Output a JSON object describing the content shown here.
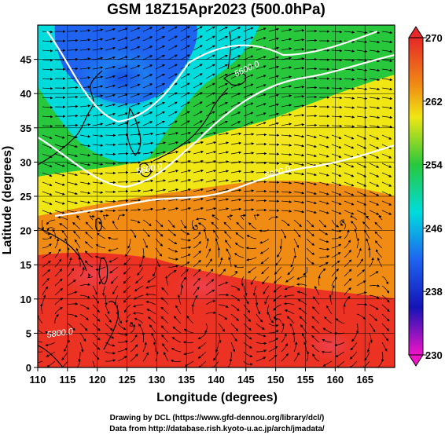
{
  "map": {
    "title": "GSM 18Z15Apr2023 (500.0hPa)",
    "type": "filled-contour-map-with-streamlines",
    "region": "East Asia and Western North Pacific",
    "x_axis": {
      "label": "Longitude (degrees)",
      "range": [
        110,
        170
      ],
      "ticks": [
        "110",
        "115",
        "120",
        "125",
        "130",
        "135",
        "140",
        "145",
        "150",
        "155",
        "160",
        "165"
      ],
      "tick_values": [
        110,
        115,
        120,
        125,
        130,
        135,
        140,
        145,
        150,
        155,
        160,
        165
      ]
    },
    "y_axis": {
      "label": "Latitude (degrees)",
      "range": [
        0,
        50
      ],
      "ticks": [
        "0",
        "5",
        "10",
        "15",
        "20",
        "25",
        "30",
        "35",
        "40",
        "45"
      ],
      "tick_values": [
        0,
        5,
        10,
        15,
        20,
        25,
        30,
        35,
        40,
        45
      ]
    },
    "grid": true,
    "colorbar": {
      "range": [
        230,
        270
      ],
      "labels": [
        "270",
        "262",
        "254",
        "246",
        "238",
        "230"
      ],
      "label_values": [
        270,
        262,
        254,
        246,
        238,
        230
      ],
      "position": "right"
    },
    "contour_labels": [
      "5600.0",
      "5800.0",
      "5600.0",
      "5800.0"
    ],
    "colors": {
      "cold": "#1e64f0",
      "cyan": "#00dcdc",
      "green": "#28c83c",
      "yellow": "#f0e614",
      "orange": "#f08c14",
      "red": "#eb3223",
      "magenta": "#f014c8",
      "contour_line": "#ffffff",
      "coastline": "#000000"
    },
    "credits": {
      "line1": "Drawing by DCL (https://www.gfd-dennou.org/library/dcl/)",
      "line2": "Data from http://database.rish.kyoto-u.ac.jp/arch/jmadata/"
    }
  }
}
